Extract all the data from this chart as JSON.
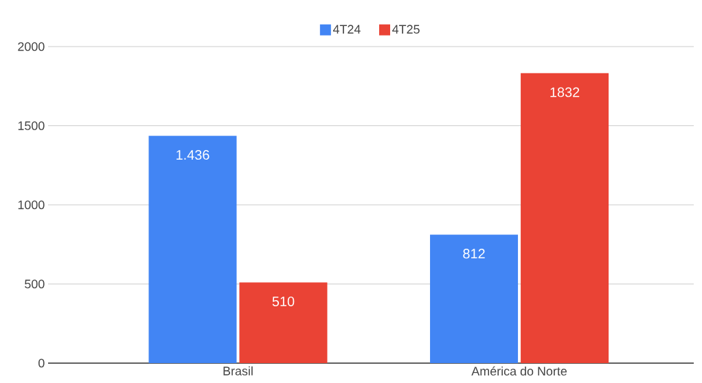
{
  "chart_data": {
    "type": "bar",
    "categories": [
      "Brasil",
      "América do Norte"
    ],
    "series": [
      {
        "name": "4T24",
        "color": "#4285f4",
        "values": [
          1436,
          812
        ],
        "value_labels": [
          "1.436",
          "812"
        ]
      },
      {
        "name": "4T25",
        "color": "#ea4335",
        "values": [
          510,
          1832
        ],
        "value_labels": [
          "510",
          "1832"
        ]
      }
    ],
    "ylim": [
      0,
      2000
    ],
    "yticks": [
      0,
      500,
      1000,
      1500,
      2000
    ],
    "grid": "y",
    "legend": "top"
  }
}
